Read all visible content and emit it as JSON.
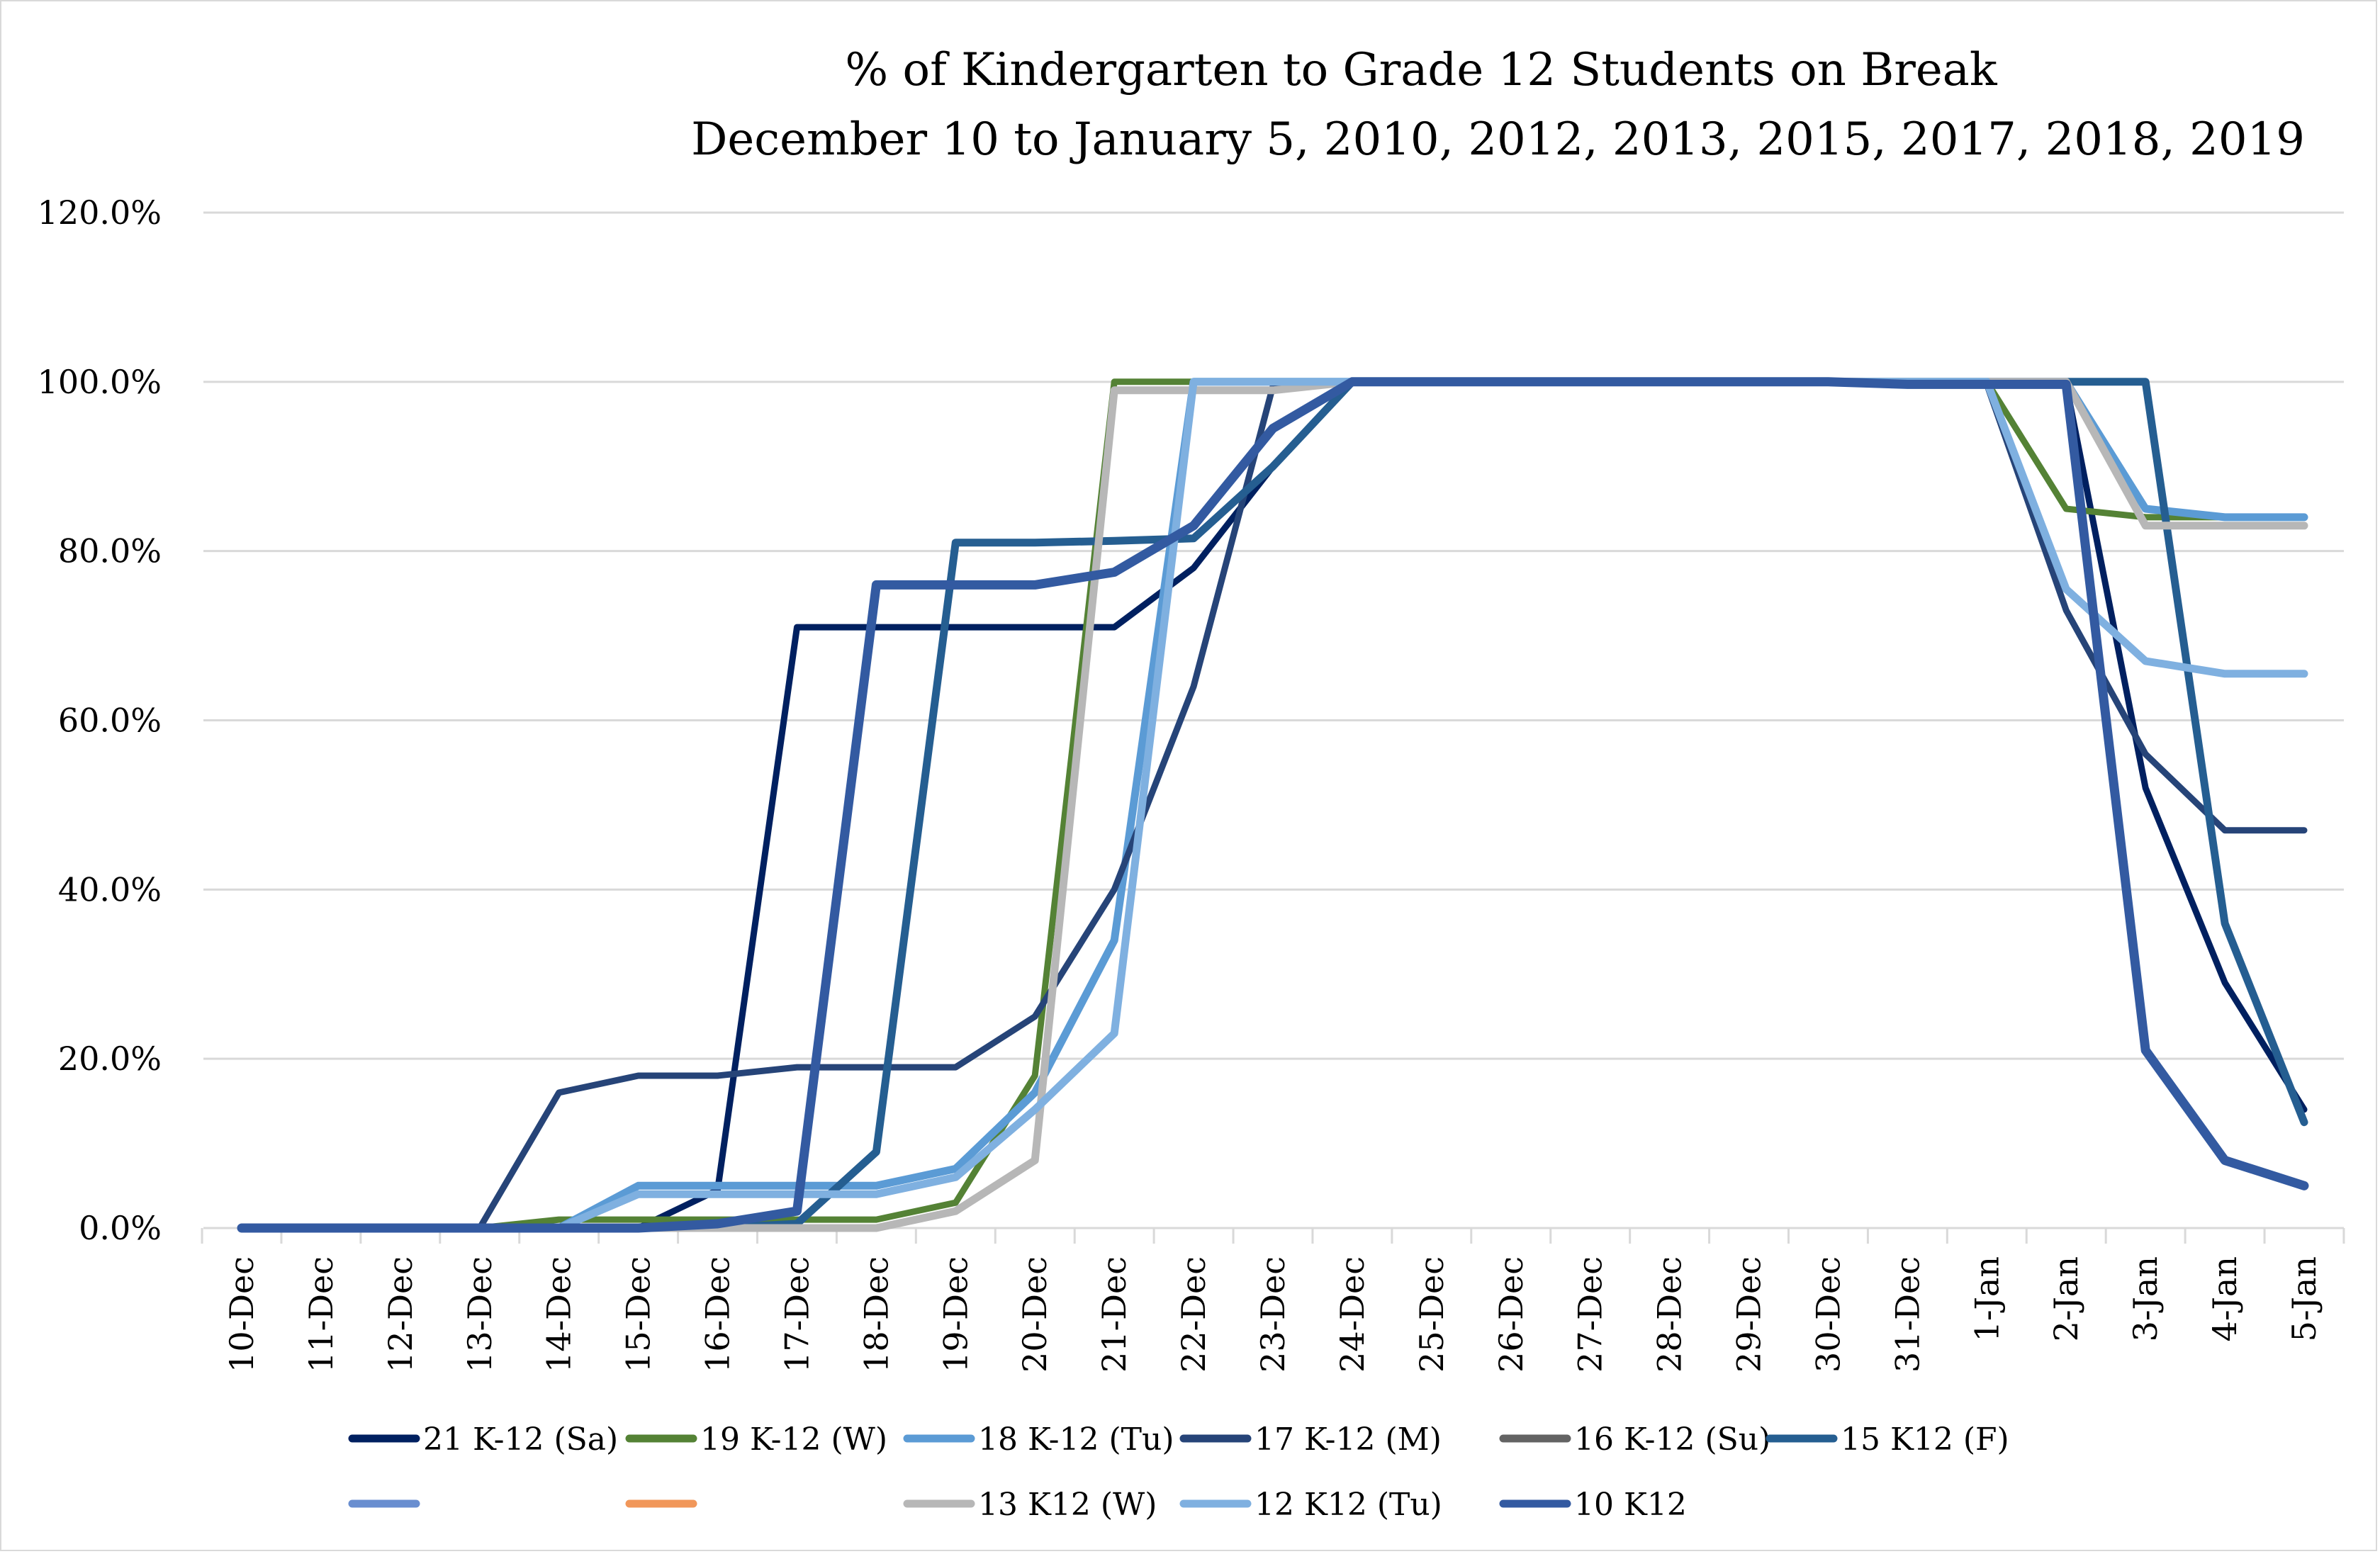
{
  "chart_data": {
    "type": "line",
    "title": "% of Kindergarten to Grade 12 Students on Break",
    "subtitle": "December 10 to January 5, 2010, 2012, 2013, 2015, 2017, 2018, 2019",
    "xlabel": "",
    "ylabel": "",
    "ylim": [
      0,
      120
    ],
    "y_ticks": [
      0,
      20,
      40,
      60,
      80,
      100,
      120
    ],
    "y_tick_labels": [
      "0.0%",
      "20.0%",
      "40.0%",
      "60.0%",
      "80.0%",
      "100.0%",
      "120.0%"
    ],
    "grid": true,
    "legend_position": "bottom",
    "categories": [
      "10-Dec",
      "11-Dec",
      "12-Dec",
      "13-Dec",
      "14-Dec",
      "15-Dec",
      "16-Dec",
      "17-Dec",
      "18-Dec",
      "19-Dec",
      "20-Dec",
      "21-Dec",
      "22-Dec",
      "23-Dec",
      "24-Dec",
      "25-Dec",
      "26-Dec",
      "27-Dec",
      "28-Dec",
      "29-Dec",
      "30-Dec",
      "31-Dec",
      "1-Jan",
      "2-Jan",
      "3-Jan",
      "4-Jan",
      "5-Jan"
    ],
    "series": [
      {
        "name": "21 K-12 (Sa)",
        "color": "#002060",
        "values": [
          0,
          0,
          0,
          0,
          0,
          0,
          4.5,
          71,
          71,
          71,
          71,
          71,
          78,
          90,
          100,
          100,
          100,
          100,
          100,
          100,
          100,
          99.7,
          99.7,
          99.7,
          52,
          29,
          14
        ]
      },
      {
        "name": "19 K-12 (W)",
        "color": "#548235",
        "values": [
          0,
          0,
          0,
          0,
          1,
          1,
          1,
          1,
          1,
          3,
          18,
          100,
          100,
          100,
          100,
          100,
          100,
          100,
          100,
          100,
          100,
          100,
          100,
          85,
          84,
          84,
          84
        ]
      },
      {
        "name": "18 K-12 (Tu)",
        "color": "#5B9BD5",
        "values": [
          0,
          0,
          0,
          0,
          0,
          5,
          5,
          5,
          5,
          7,
          16,
          34,
          100,
          100,
          100,
          100,
          100,
          100,
          100,
          100,
          100,
          100,
          100,
          100,
          85,
          84,
          84
        ]
      },
      {
        "name": "17 K-12 (M)",
        "color": "#264478",
        "values": [
          0,
          0,
          0,
          0,
          16,
          18,
          18,
          19,
          19,
          19,
          25,
          40,
          64,
          99.5,
          100,
          100,
          100,
          100,
          100,
          100,
          100,
          99.7,
          99.7,
          73,
          56,
          47,
          47
        ]
      },
      {
        "name": "16 K-12 (Su)",
        "color": "#636363",
        "values": [
          0,
          0,
          0,
          0,
          0,
          0,
          0,
          0,
          0,
          2,
          8,
          99,
          99,
          99,
          100,
          100,
          100,
          100,
          100,
          100,
          100,
          100,
          100,
          100,
          83,
          83,
          83
        ]
      },
      {
        "name": "15 K12 (F)",
        "color": "#255E91",
        "values": [
          0,
          0,
          0,
          0,
          0,
          0,
          0,
          0.5,
          9,
          81,
          81,
          81.2,
          81.5,
          90,
          100,
          100,
          100,
          100,
          100,
          100,
          100,
          100,
          100,
          100,
          100,
          36,
          12.5
        ]
      },
      {
        "name": "",
        "color": "#698ED0",
        "values": []
      },
      {
        "name": "",
        "color": "#F1975A",
        "values": []
      },
      {
        "name": "13 K12 (W)",
        "color": "#B7B7B7",
        "values": [
          0,
          0,
          0,
          0,
          0,
          0,
          0,
          0,
          0,
          2,
          8,
          99,
          99,
          99,
          100,
          100,
          100,
          100,
          100,
          100,
          100,
          100,
          100,
          100,
          83,
          83,
          83
        ]
      },
      {
        "name": "12 K12 (Tu)",
        "color": "#7FB0E0",
        "values": [
          0,
          0,
          0,
          0,
          0,
          4,
          4,
          4,
          4,
          6,
          14,
          23,
          100,
          100,
          100,
          100,
          100,
          100,
          100,
          100,
          100,
          100,
          100,
          75.5,
          67,
          65.5,
          65.5
        ]
      },
      {
        "name": "10 K12",
        "color": "#335AA1",
        "values": [
          0,
          0,
          0,
          0,
          0,
          0,
          0.5,
          2,
          76,
          76,
          76,
          77.5,
          83,
          94.5,
          100,
          100,
          100,
          100,
          100,
          100,
          100,
          99.7,
          99.7,
          99.7,
          21,
          8,
          5
        ]
      }
    ]
  }
}
